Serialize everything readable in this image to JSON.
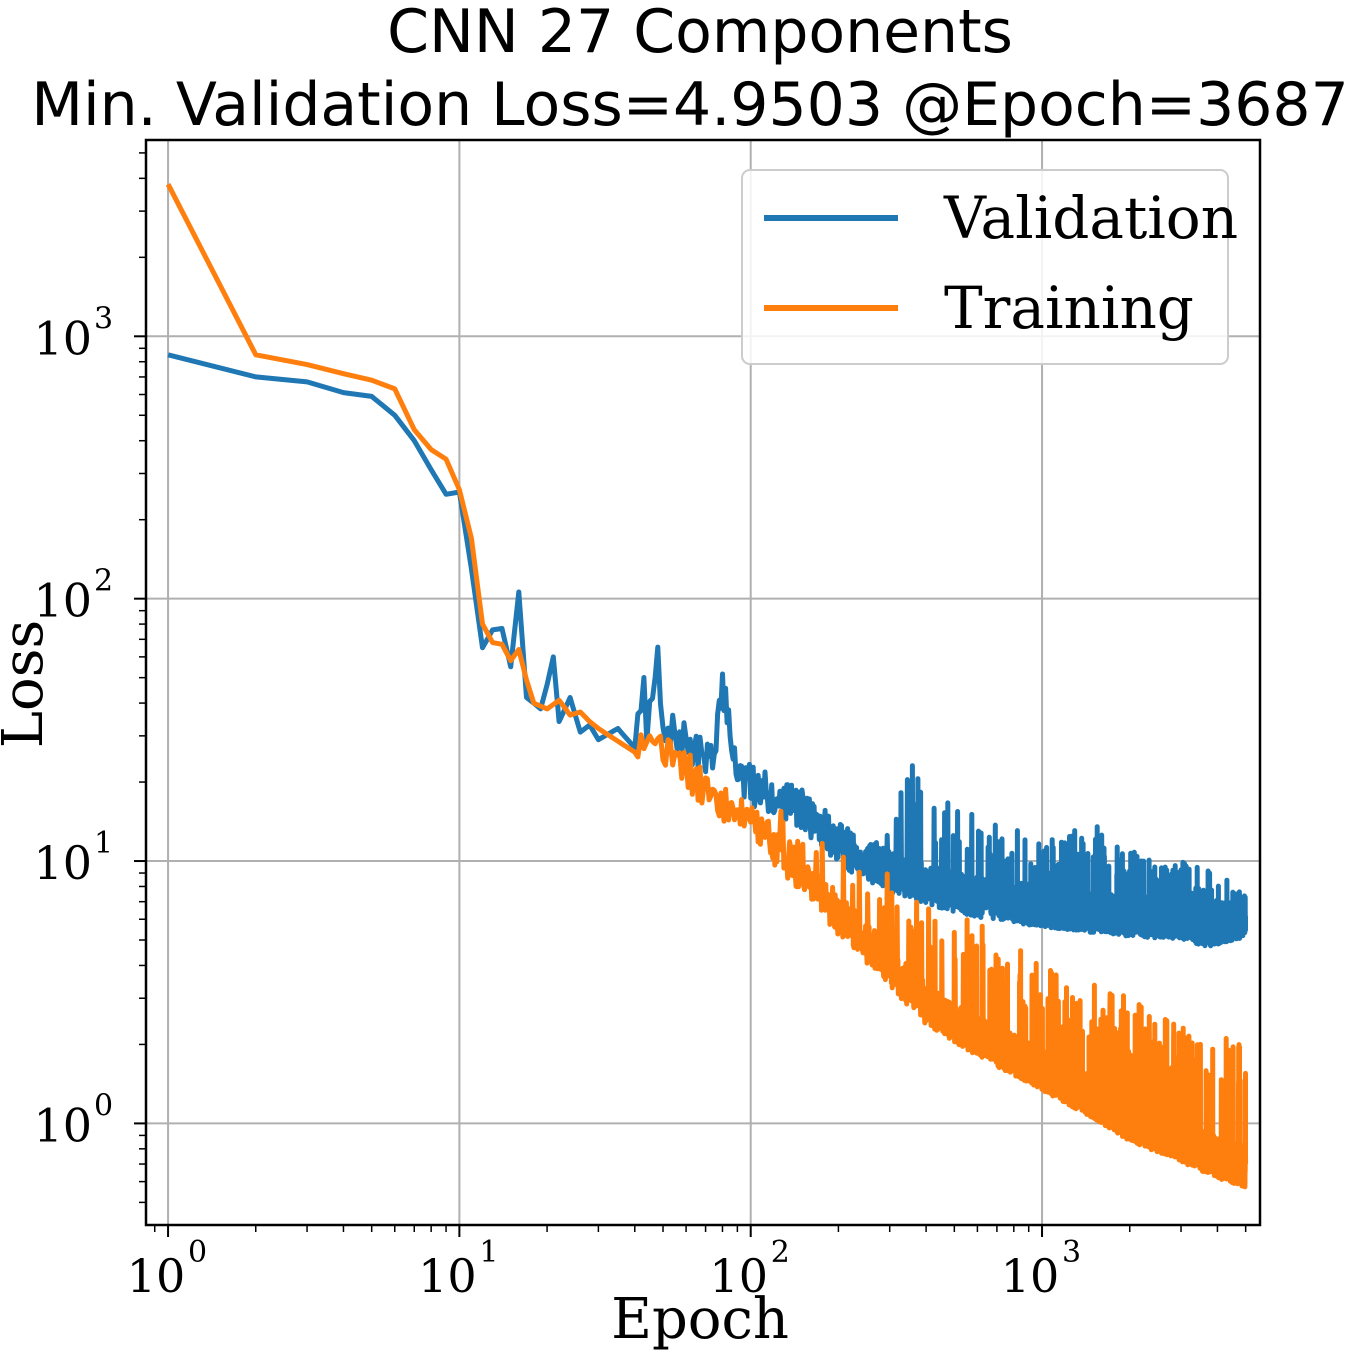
{
  "chart_data": {
    "type": "line",
    "title": "CNN 27 Components",
    "subtitle": "Min. Validation Loss=4.9503 @Epoch=3687",
    "xlabel": "Epoch",
    "ylabel": "Loss",
    "xscale": "log",
    "yscale": "log",
    "xlim": [
      0.84,
      5600
    ],
    "ylim": [
      0.41,
      5600
    ],
    "x_ticks": [
      1,
      10,
      100,
      1000
    ],
    "x_tick_labels": [
      {
        "base": "10",
        "exp": "0"
      },
      {
        "base": "10",
        "exp": "1"
      },
      {
        "base": "10",
        "exp": "2"
      },
      {
        "base": "10",
        "exp": "3"
      }
    ],
    "y_ticks": [
      1,
      10,
      100,
      1000
    ],
    "y_tick_labels": [
      {
        "base": "10",
        "exp": "0"
      },
      {
        "base": "10",
        "exp": "1"
      },
      {
        "base": "10",
        "exp": "2"
      },
      {
        "base": "10",
        "exp": "3"
      }
    ],
    "grid": true,
    "legend_position": "top-right",
    "epochs": 5000,
    "series": [
      {
        "name": "Validation",
        "color": "#1f77b4",
        "points": [
          [
            1,
            850
          ],
          [
            2,
            700
          ],
          [
            3,
            670
          ],
          [
            4,
            610
          ],
          [
            5,
            590
          ],
          [
            6,
            500
          ],
          [
            7,
            400
          ],
          [
            8,
            310
          ],
          [
            9,
            250
          ],
          [
            10,
            255
          ],
          [
            11,
            130
          ],
          [
            12,
            65
          ],
          [
            13,
            76
          ],
          [
            14,
            77
          ],
          [
            15,
            55
          ],
          [
            16,
            106
          ],
          [
            17,
            42
          ],
          [
            18,
            40
          ],
          [
            19,
            38
          ],
          [
            20,
            47
          ],
          [
            21,
            60
          ],
          [
            22,
            34
          ],
          [
            24,
            42
          ],
          [
            26,
            31
          ],
          [
            28,
            33
          ],
          [
            30,
            29
          ],
          [
            35,
            32
          ],
          [
            40,
            27
          ],
          [
            45,
            30
          ],
          [
            48,
            52
          ],
          [
            50,
            25
          ],
          [
            55,
            27
          ],
          [
            60,
            25
          ],
          [
            65,
            22
          ],
          [
            70,
            23
          ],
          [
            75,
            20
          ],
          [
            80,
            42
          ],
          [
            90,
            19
          ],
          [
            100,
            17
          ],
          [
            150,
            14
          ],
          [
            200,
            10
          ],
          [
            300,
            8
          ],
          [
            400,
            7.2
          ],
          [
            600,
            6.4
          ],
          [
            1000,
            5.9
          ],
          [
            1500,
            5.6
          ],
          [
            2000,
            5.4
          ],
          [
            3000,
            5.3
          ],
          [
            3687,
            4.9503
          ],
          [
            5000,
            5.4
          ]
        ],
        "upper": [
          [
            50,
            52
          ],
          [
            80,
            42
          ],
          [
            100,
            20
          ],
          [
            150,
            18
          ],
          [
            200,
            16
          ],
          [
            300,
            14
          ],
          [
            350,
            25
          ],
          [
            400,
            18
          ],
          [
            600,
            15
          ],
          [
            1000,
            12
          ],
          [
            1500,
            14
          ],
          [
            2000,
            11
          ],
          [
            3000,
            10
          ],
          [
            4000,
            9
          ],
          [
            5000,
            7.5
          ]
        ]
      },
      {
        "name": "Training",
        "color": "#ff7f0e",
        "points": [
          [
            1,
            3800
          ],
          [
            2,
            850
          ],
          [
            3,
            780
          ],
          [
            4,
            720
          ],
          [
            5,
            680
          ],
          [
            6,
            630
          ],
          [
            7,
            440
          ],
          [
            8,
            370
          ],
          [
            9,
            340
          ],
          [
            10,
            260
          ],
          [
            11,
            170
          ],
          [
            12,
            80
          ],
          [
            13,
            68
          ],
          [
            14,
            67
          ],
          [
            15,
            58
          ],
          [
            16,
            64
          ],
          [
            17,
            49
          ],
          [
            18,
            40
          ],
          [
            20,
            38
          ],
          [
            22,
            41
          ],
          [
            24,
            36
          ],
          [
            26,
            37
          ],
          [
            28,
            34
          ],
          [
            30,
            32
          ],
          [
            40,
            26
          ],
          [
            50,
            22
          ],
          [
            70,
            17
          ],
          [
            100,
            12
          ],
          [
            150,
            8
          ],
          [
            200,
            5.5
          ],
          [
            300,
            3.5
          ],
          [
            400,
            2.5
          ],
          [
            600,
            1.9
          ],
          [
            1000,
            1.4
          ],
          [
            1500,
            1.1
          ],
          [
            2000,
            0.9
          ],
          [
            3000,
            0.75
          ],
          [
            4000,
            0.65
          ],
          [
            5000,
            0.6
          ]
        ],
        "upper": [
          [
            50,
            30
          ],
          [
            100,
            18
          ],
          [
            150,
            14
          ],
          [
            200,
            12
          ],
          [
            300,
            10
          ],
          [
            400,
            7
          ],
          [
            600,
            6
          ],
          [
            1000,
            4
          ],
          [
            1500,
            3.5
          ],
          [
            2000,
            3
          ],
          [
            3000,
            2.5
          ],
          [
            4000,
            2.2
          ],
          [
            5000,
            2
          ]
        ]
      }
    ]
  }
}
